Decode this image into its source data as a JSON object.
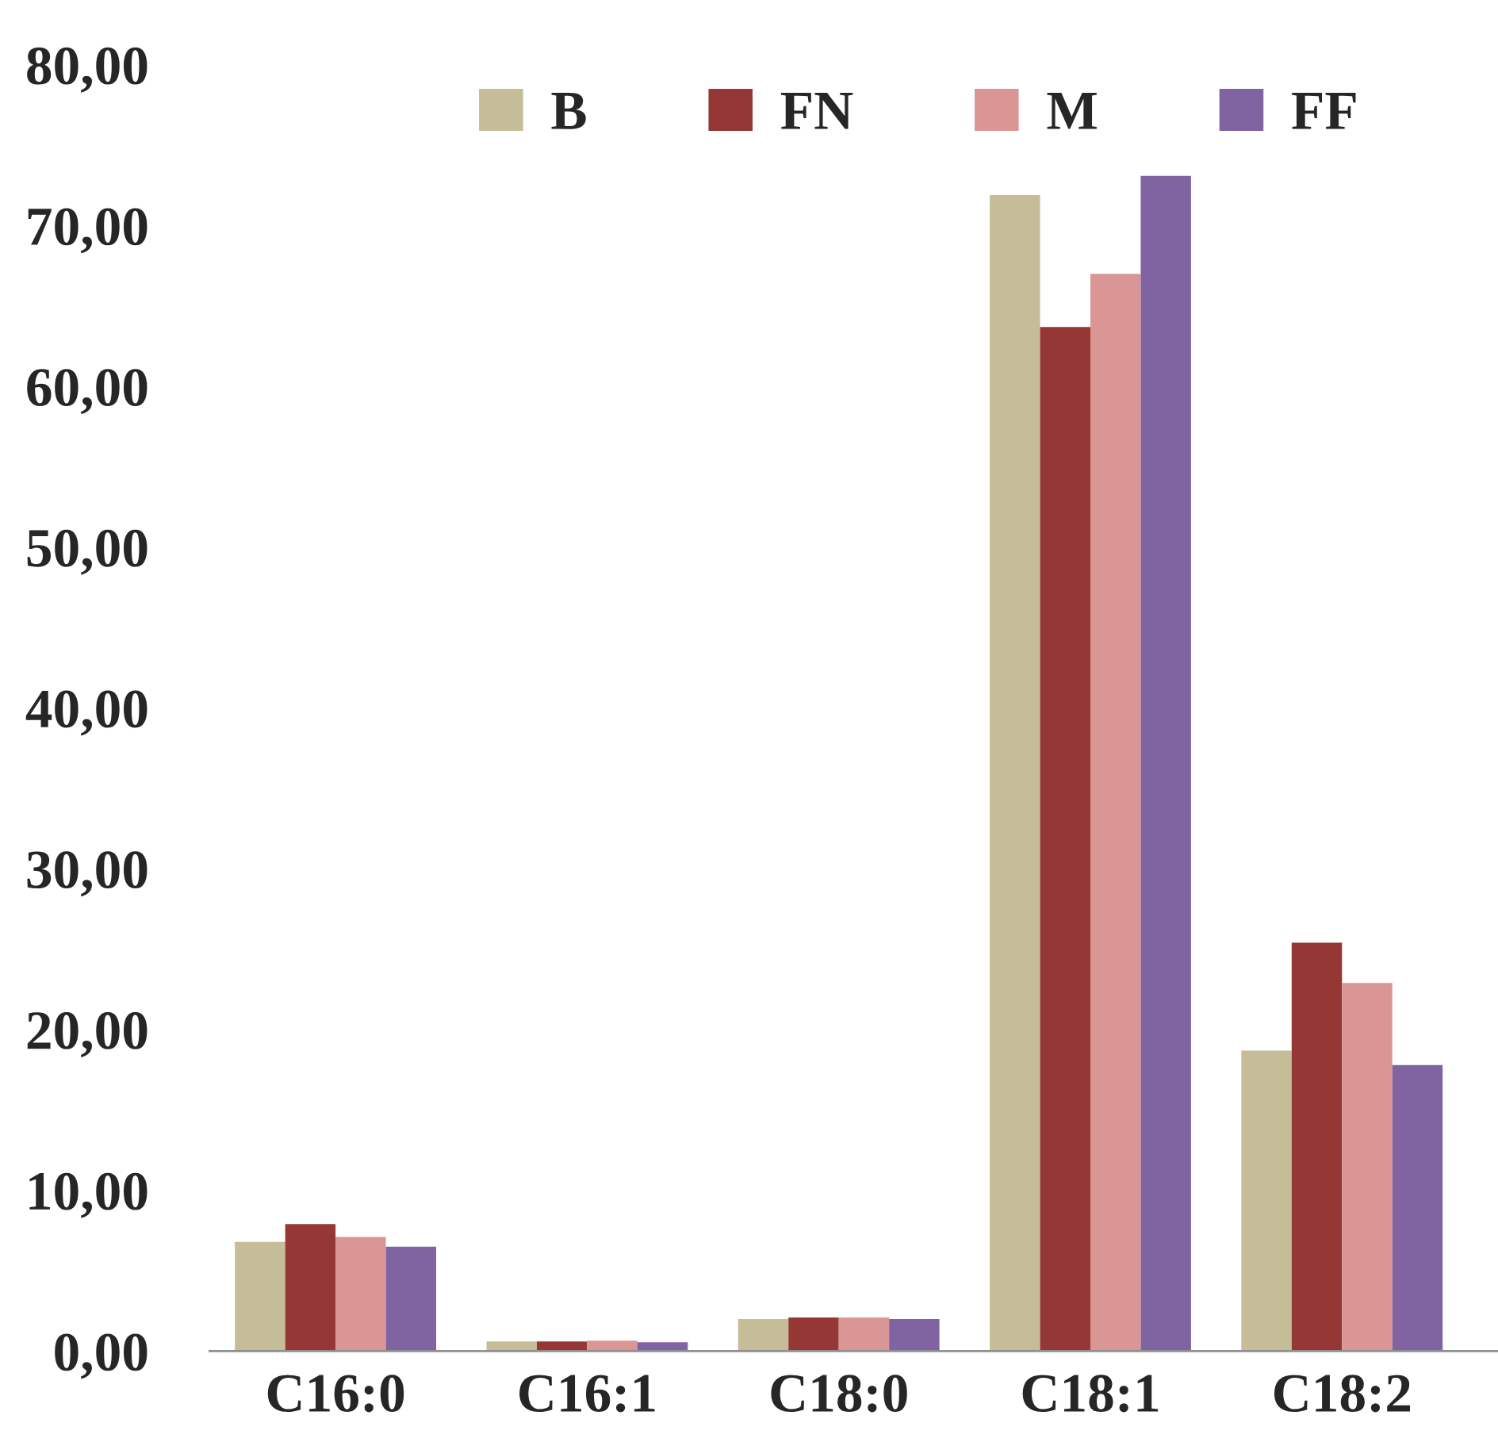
{
  "chart_data": {
    "type": "bar",
    "categories": [
      "C16:0",
      "C16:1",
      "C18:0",
      "C18:1",
      "C18:2"
    ],
    "series": [
      {
        "name": "B",
        "color": "#c4bd97",
        "values": [
          6.8,
          0.6,
          2.0,
          71.9,
          18.7
        ]
      },
      {
        "name": "FN",
        "color": "#953735",
        "values": [
          7.9,
          0.6,
          2.1,
          63.7,
          25.4
        ]
      },
      {
        "name": "M",
        "color": "#d99694",
        "values": [
          7.1,
          0.65,
          2.1,
          67.0,
          22.9
        ]
      },
      {
        "name": "FF",
        "color": "#8064a2",
        "values": [
          6.5,
          0.55,
          2.0,
          73.1,
          17.8
        ]
      }
    ],
    "ylim": [
      0,
      80
    ],
    "yticks": [
      {
        "value": 0,
        "label": "0,00"
      },
      {
        "value": 10,
        "label": "10,00"
      },
      {
        "value": 20,
        "label": "20,00"
      },
      {
        "value": 30,
        "label": "30,00"
      },
      {
        "value": 40,
        "label": "40,00"
      },
      {
        "value": 50,
        "label": "50,00"
      },
      {
        "value": 60,
        "label": "60,00"
      },
      {
        "value": 70,
        "label": "70,00"
      },
      {
        "value": 80,
        "label": "80,00"
      }
    ],
    "grid": false,
    "legend": "top right"
  }
}
